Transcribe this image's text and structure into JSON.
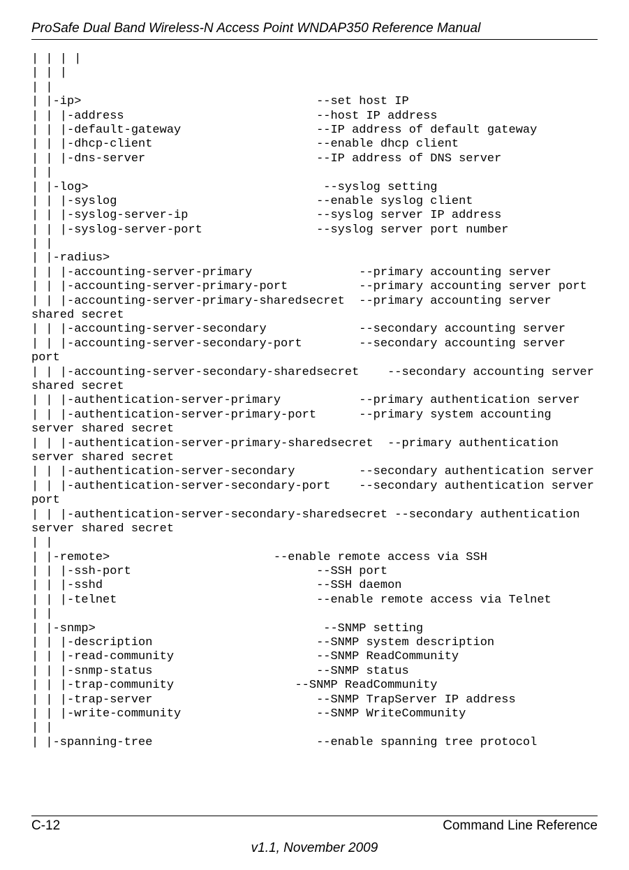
{
  "doc_title": "ProSafe Dual Band Wireless-N Access Point WNDAP350 Reference Manual",
  "page_number": "C-12",
  "section_title": "Command Line Reference",
  "version_line": "v1.1, November 2009",
  "cli": {
    "lines": [
      "| | | |",
      "| | |",
      "| |",
      "| |-ip>                                 --set host IP",
      "| | |-address                           --host IP address",
      "| | |-default-gateway                   --IP address of default gateway",
      "| | |-dhcp-client                       --enable dhcp client",
      "| | |-dns-server                        --IP address of DNS server",
      "| |",
      "| |-log>                                 --syslog setting",
      "| | |-syslog                            --enable syslog client",
      "| | |-syslog-server-ip                  --syslog server IP address",
      "| | |-syslog-server-port                --syslog server port number",
      "| |",
      "| |-radius>",
      "| | |-accounting-server-primary               --primary accounting server",
      "| | |-accounting-server-primary-port          --primary accounting server port",
      "| | |-accounting-server-primary-sharedsecret  --primary accounting server shared secret",
      "| | |-accounting-server-secondary             --secondary accounting server",
      "| | |-accounting-server-secondary-port        --secondary accounting server port",
      "| | |-accounting-server-secondary-sharedsecret    --secondary accounting server shared secret",
      "| | |-authentication-server-primary           --primary authentication server",
      "| | |-authentication-server-primary-port      --primary system accounting server shared secret",
      "| | |-authentication-server-primary-sharedsecret  --primary authentication server shared secret",
      "| | |-authentication-server-secondary         --secondary authentication server",
      "| | |-authentication-server-secondary-port    --secondary authentication server port",
      "| | |-authentication-server-secondary-sharedsecret --secondary authentication server shared secret",
      "| |",
      "| |-remote>                       --enable remote access via SSH",
      "| | |-ssh-port                          --SSH port",
      "| | |-sshd                              --SSH daemon",
      "| | |-telnet                            --enable remote access via Telnet",
      "| |",
      "| |-snmp>                                --SNMP setting",
      "| | |-description                       --SNMP system description",
      "| | |-read-community                    --SNMP ReadCommunity",
      "| | |-snmp-status                       --SNMP status",
      "| | |-trap-community                 --SNMP ReadCommunity",
      "| | |-trap-server                       --SNMP TrapServer IP address",
      "| | |-write-community                   --SNMP WriteCommunity",
      "| |",
      "| |-spanning-tree                       --enable spanning tree protocol"
    ]
  }
}
